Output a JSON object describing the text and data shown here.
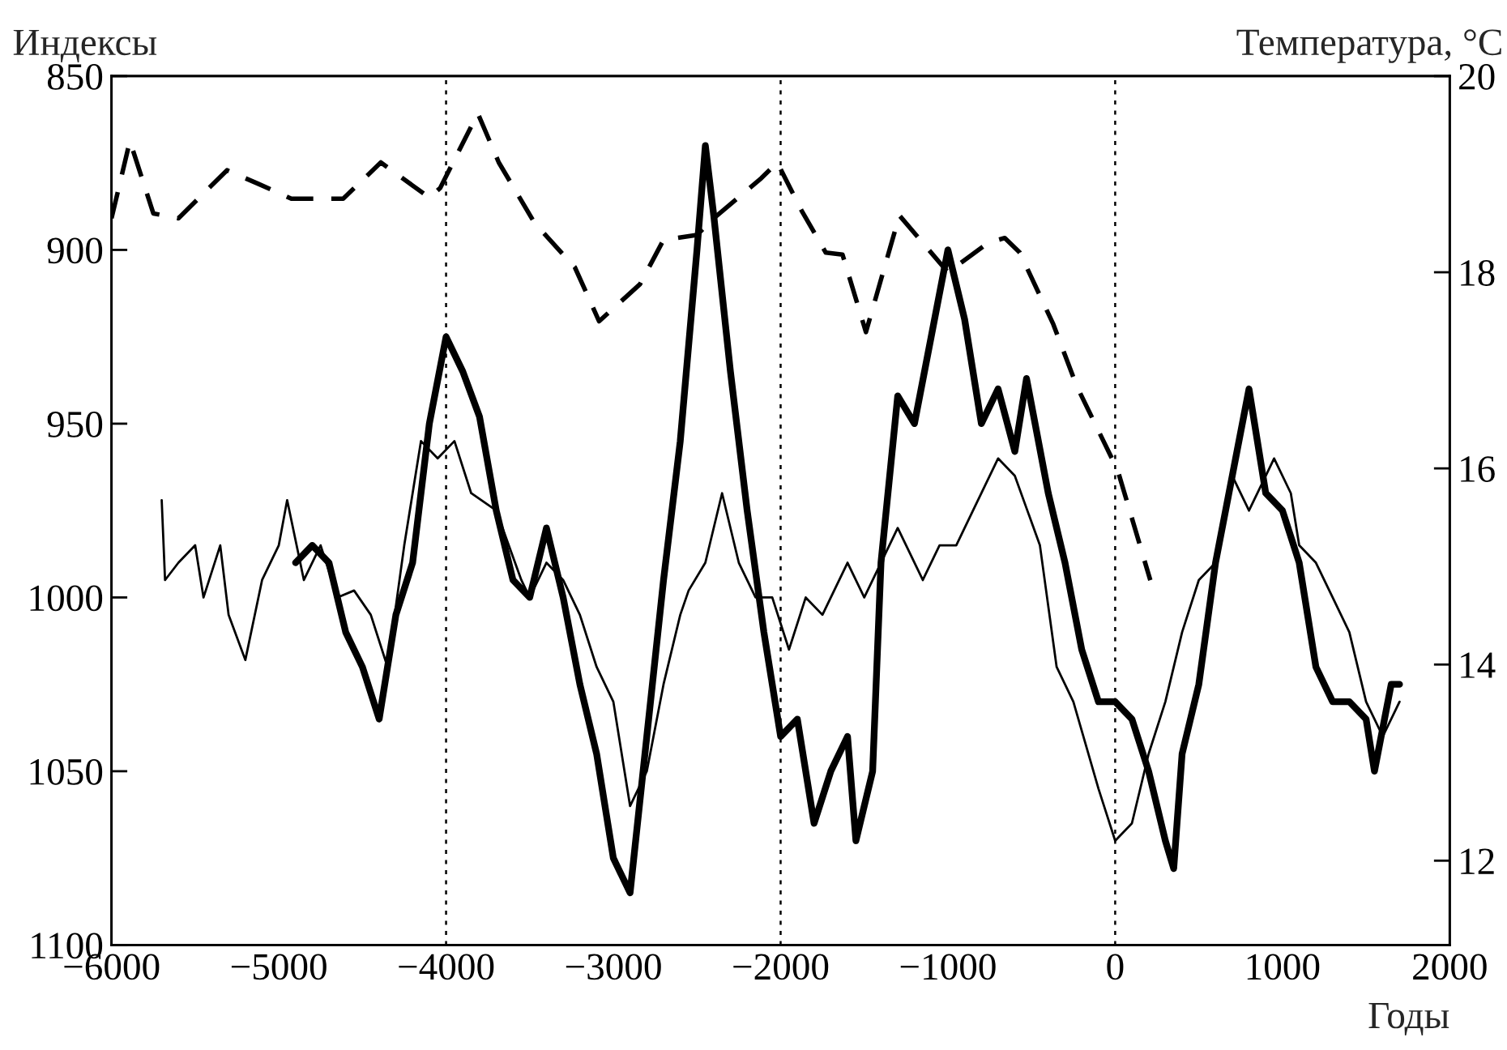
{
  "chart_data": {
    "type": "line",
    "xlabel": "Годы",
    "ylabel": "Индексы",
    "y2label": "Температура, °C",
    "xlim": [
      -6000,
      2000
    ],
    "xticks": [
      {
        "value": -6000,
        "label": "−6000"
      },
      {
        "value": -5000,
        "label": "−5000"
      },
      {
        "value": -4000,
        "label": "−4000"
      },
      {
        "value": -3000,
        "label": "−3000"
      },
      {
        "value": -2000,
        "label": "−2000"
      },
      {
        "value": -1000,
        "label": "−1000"
      },
      0,
      1000,
      2000
    ],
    "ylim": [
      1100,
      850
    ],
    "yticks": [
      850,
      900,
      950,
      1000,
      1050,
      1100
    ],
    "y2lim": [
      11.14,
      20
    ],
    "y2ticks": [
      12,
      14,
      16,
      18,
      20
    ],
    "grid": false,
    "legend": false,
    "ref_lines": [
      {
        "axis": "x",
        "value": -4000,
        "color": "#000000",
        "line_style": "dotted"
      },
      {
        "axis": "x",
        "value": -2000,
        "color": "#000000",
        "line_style": "dotted"
      },
      {
        "axis": "x",
        "value": 0,
        "color": "#000000",
        "line_style": "dotted"
      }
    ],
    "series": [
      {
        "color": "#000000",
        "line_style": "solid",
        "x": [
          -5700,
          -5680,
          -5600,
          -5500,
          -5450,
          -5350,
          -5300,
          -5200,
          -5100,
          -5000,
          -4950,
          -4850,
          -4750,
          -4650,
          -4550,
          -4450,
          -4350,
          -4250,
          -4150,
          -4050,
          -3950,
          -3850,
          -3700,
          -3550,
          -3500,
          -3400,
          -3300,
          -3200,
          -3100,
          -3000,
          -2900,
          -2800,
          -2700,
          -2600,
          -2550,
          -2450,
          -2350,
          -2250,
          -2150,
          -2050,
          -1950,
          -1850,
          -1750,
          -1600,
          -1500,
          -1400,
          -1300,
          -1150,
          -1050,
          -950,
          -850,
          -700,
          -600,
          -450,
          -350,
          -250,
          -100,
          0,
          100,
          200,
          300,
          400,
          500,
          600,
          700,
          800,
          900,
          950,
          1050,
          1100,
          1200,
          1300,
          1400,
          1500,
          1600,
          1700
        ],
        "values": [
          972,
          995,
          990,
          985,
          1000,
          985,
          1005,
          1018,
          995,
          985,
          972,
          995,
          985,
          1000,
          998,
          1005,
          1020,
          985,
          955,
          960,
          955,
          970,
          975,
          995,
          1000,
          990,
          995,
          1005,
          1020,
          1030,
          1060,
          1050,
          1025,
          1005,
          998,
          990,
          970,
          990,
          1000,
          1000,
          1015,
          1000,
          1005,
          990,
          1000,
          990,
          980,
          995,
          985,
          985,
          975,
          960,
          965,
          985,
          1020,
          1030,
          1055,
          1070,
          1065,
          1045,
          1030,
          1010,
          995,
          990,
          965,
          975,
          965,
          960,
          970,
          985,
          990,
          1000,
          1010,
          1030,
          1040,
          1030
        ]
      },
      {
        "color": "#000000",
        "line_style": "solid",
        "x": [
          -4900,
          -4800,
          -4700,
          -4600,
          -4500,
          -4400,
          -4300,
          -4200,
          -4100,
          -4000,
          -3900,
          -3800,
          -3700,
          -3600,
          -3500,
          -3400,
          -3300,
          -3200,
          -3100,
          -3000,
          -2900,
          -2800,
          -2700,
          -2600,
          -2500,
          -2450,
          -2400,
          -2300,
          -2200,
          -2100,
          -2000,
          -1900,
          -1800,
          -1700,
          -1600,
          -1550,
          -1450,
          -1400,
          -1300,
          -1200,
          -1100,
          -1000,
          -900,
          -800,
          -700,
          -600,
          -530,
          -400,
          -300,
          -200,
          -100,
          0,
          100,
          200,
          300,
          350,
          400,
          500,
          600,
          700,
          800,
          900,
          1000,
          1100,
          1200,
          1300,
          1400,
          1500,
          1550,
          1650,
          1700
        ],
        "values": [
          990,
          985,
          990,
          1010,
          1020,
          1035,
          1005,
          990,
          950,
          925,
          935,
          948,
          975,
          995,
          1000,
          980,
          1000,
          1025,
          1045,
          1075,
          1085,
          1040,
          995,
          955,
          900,
          870,
          890,
          935,
          975,
          1010,
          1040,
          1035,
          1065,
          1050,
          1040,
          1070,
          1050,
          990,
          942,
          950,
          925,
          900,
          920,
          950,
          940,
          958,
          937,
          970,
          990,
          1015,
          1030,
          1030,
          1035,
          1050,
          1070,
          1078,
          1045,
          1025,
          990,
          965,
          940,
          970,
          975,
          990,
          1020,
          1030,
          1030,
          1035,
          1050,
          1025,
          1025
        ]
      },
      {
        "color": "#000000",
        "line_style": "dashed",
        "axis": "y2",
        "x": [
          -6000,
          -5890,
          -5750,
          -5600,
          -5310,
          -5120,
          -4925,
          -4615,
          -4390,
          -4100,
          -4035,
          -3810,
          -3685,
          -3470,
          -3230,
          -3085,
          -2840,
          -2700,
          -2500,
          -2400,
          -2115,
          -2020,
          -1875,
          -1730,
          -1630,
          -1490,
          -1290,
          -1100,
          -1000,
          -760,
          -660,
          -570,
          -370,
          -230,
          15,
          210
        ],
        "values": [
          18.55,
          19.34,
          18.6,
          18.55,
          19.04,
          18.9,
          18.75,
          18.75,
          19.12,
          18.76,
          18.86,
          19.62,
          19.12,
          18.5,
          18.05,
          17.5,
          17.88,
          18.33,
          18.38,
          18.55,
          18.96,
          19.12,
          18.63,
          18.2,
          18.18,
          17.39,
          18.58,
          18.2,
          18.0,
          18.3,
          18.35,
          18.2,
          17.47,
          16.84,
          15.98,
          14.86
        ]
      }
    ]
  }
}
